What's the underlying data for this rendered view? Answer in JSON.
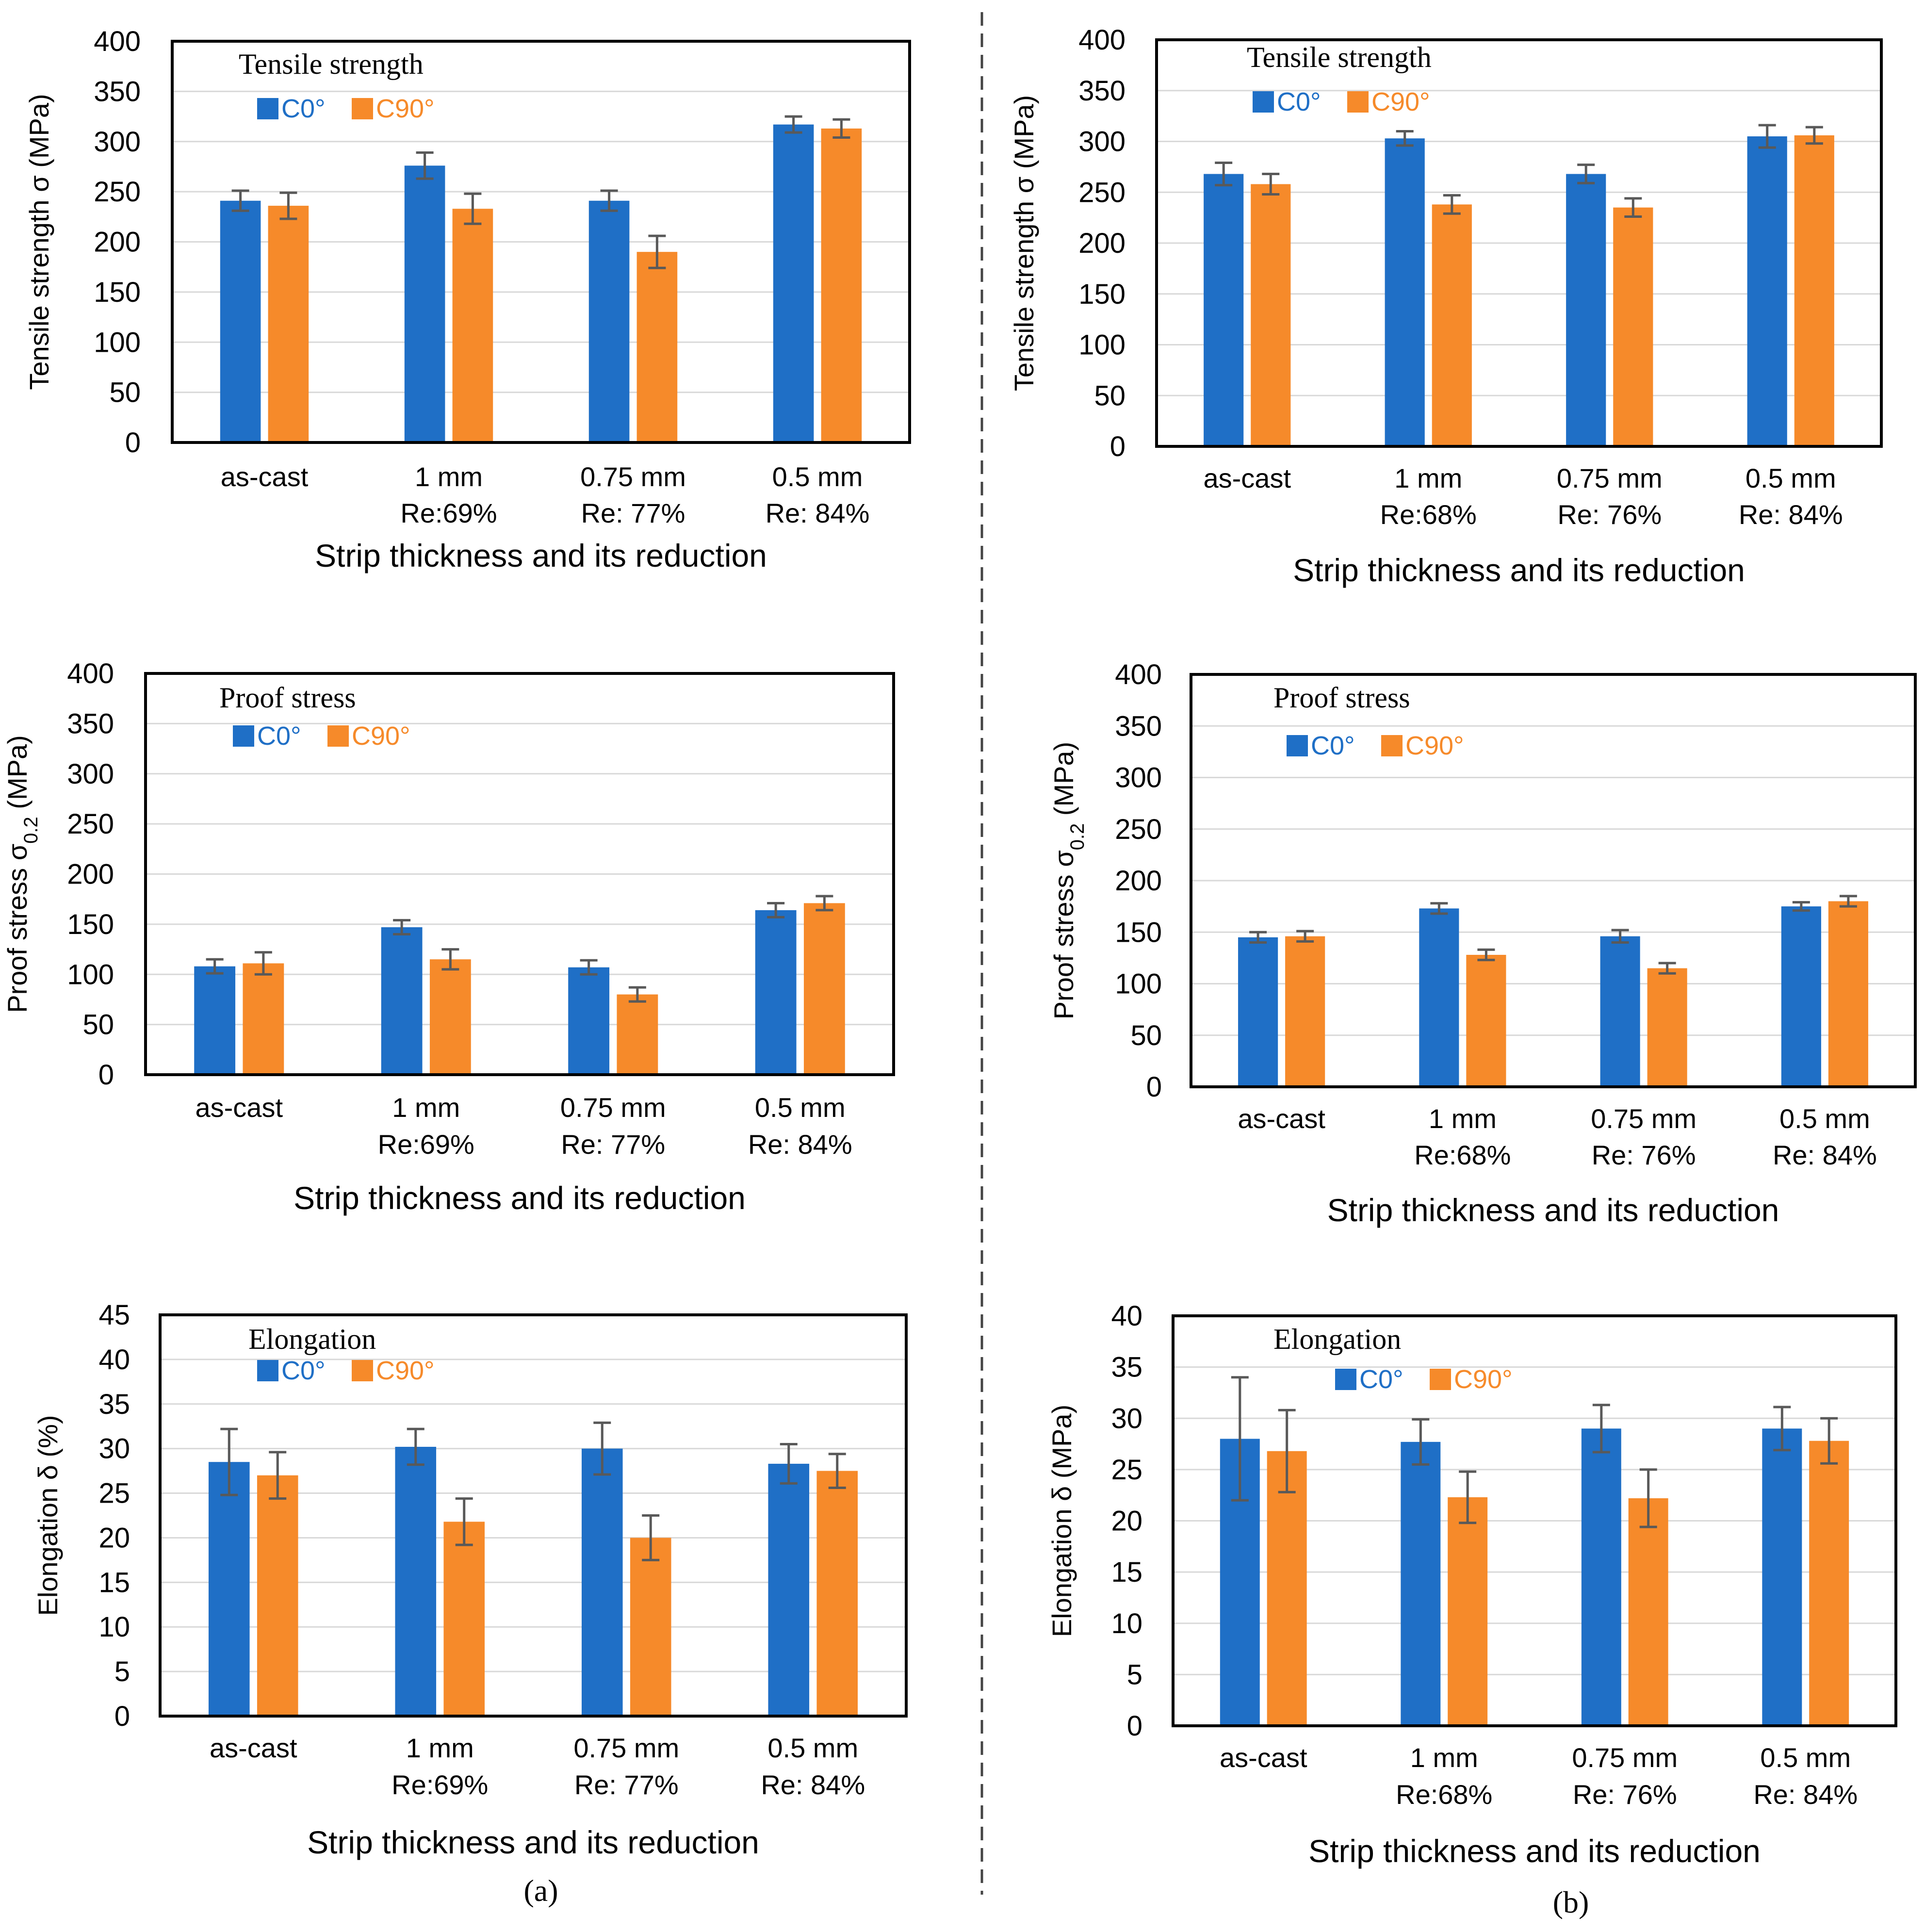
{
  "figure": {
    "caption_a": "(a)",
    "caption_b": "(b)",
    "colors": {
      "c0": "#1f6fc6",
      "c90": "#f68a2a",
      "grid": "#d9d9d9",
      "error": "#595959",
      "axis": "#000000"
    }
  },
  "chart_data": [
    {
      "id": "a-tensile",
      "type": "bar",
      "title": "Tensile strength",
      "ylabel": "Tensile strength σ (MPa)",
      "ylabel_sub": "",
      "ylabel_tail": "",
      "xlabel": "Strip thickness and its reduction",
      "categories": [
        [
          "as-cast"
        ],
        [
          "1 mm",
          "Re:69%"
        ],
        [
          "0.75 mm",
          "Re: 77%"
        ],
        [
          "0.5 mm",
          "Re: 84%"
        ]
      ],
      "ylim": [
        0,
        400
      ],
      "yticks": [
        0,
        50,
        100,
        150,
        200,
        250,
        300,
        350,
        400
      ],
      "grid": true,
      "series": [
        {
          "name": "C0°",
          "values": [
            241,
            276,
            241,
            317
          ],
          "errors": [
            10,
            13,
            10,
            8
          ]
        },
        {
          "name": "C90°",
          "values": [
            236,
            233,
            190,
            313
          ],
          "errors": [
            13,
            15,
            16,
            9
          ]
        }
      ]
    },
    {
      "id": "b-tensile",
      "type": "bar",
      "title": "Tensile strength",
      "ylabel": "Tensile strength σ (MPa)",
      "ylabel_sub": "",
      "ylabel_tail": "",
      "xlabel": "Strip thickness and its reduction",
      "categories": [
        [
          "as-cast"
        ],
        [
          "1 mm",
          "Re:68%"
        ],
        [
          "0.75 mm",
          "Re: 76%"
        ],
        [
          "0.5 mm",
          "Re: 84%"
        ]
      ],
      "ylim": [
        0,
        400
      ],
      "yticks": [
        0,
        50,
        100,
        150,
        200,
        250,
        300,
        350,
        400
      ],
      "grid": true,
      "series": [
        {
          "name": "C0°",
          "values": [
            268,
            303,
            268,
            305
          ],
          "errors": [
            11,
            7,
            9,
            11
          ]
        },
        {
          "name": "C90°",
          "values": [
            258,
            238,
            235,
            306
          ],
          "errors": [
            10,
            9,
            9,
            8
          ]
        }
      ]
    },
    {
      "id": "a-proof",
      "type": "bar",
      "title": "Proof stress",
      "ylabel": "Proof stress σ",
      "ylabel_sub": "0.2",
      "ylabel_tail": " (MPa)",
      "xlabel": "Strip thickness and its reduction",
      "categories": [
        [
          "as-cast"
        ],
        [
          "1 mm",
          "Re:69%"
        ],
        [
          "0.75 mm",
          "Re: 77%"
        ],
        [
          "0.5 mm",
          "Re: 84%"
        ]
      ],
      "ylim": [
        0,
        400
      ],
      "yticks": [
        0,
        50,
        100,
        150,
        200,
        250,
        300,
        350,
        400
      ],
      "grid": true,
      "series": [
        {
          "name": "C0°",
          "values": [
            108,
            147,
            107,
            164
          ],
          "errors": [
            7,
            7,
            7,
            7
          ]
        },
        {
          "name": "C90°",
          "values": [
            111,
            115,
            80,
            171
          ],
          "errors": [
            11,
            10,
            7,
            7
          ]
        }
      ]
    },
    {
      "id": "b-proof",
      "type": "bar",
      "title": "Proof stress",
      "ylabel": "Proof stress σ",
      "ylabel_sub": "0.2",
      "ylabel_tail": " (MPa)",
      "xlabel": "Strip thickness and its reduction",
      "categories": [
        [
          "as-cast"
        ],
        [
          "1 mm",
          "Re:68%"
        ],
        [
          "0.75 mm",
          "Re: 76%"
        ],
        [
          "0.5 mm",
          "Re: 84%"
        ]
      ],
      "ylim": [
        0,
        400
      ],
      "yticks": [
        0,
        50,
        100,
        150,
        200,
        250,
        300,
        350,
        400
      ],
      "grid": true,
      "series": [
        {
          "name": "C0°",
          "values": [
            145,
            173,
            146,
            175
          ],
          "errors": [
            5,
            5,
            6,
            4
          ]
        },
        {
          "name": "C90°",
          "values": [
            146,
            128,
            115,
            180
          ],
          "errors": [
            5,
            5,
            5,
            5
          ]
        }
      ]
    },
    {
      "id": "a-elong",
      "type": "bar",
      "title": "Elongation",
      "ylabel": "Elongation δ (%)",
      "ylabel_sub": "",
      "ylabel_tail": "",
      "xlabel": "Strip thickness and its reduction",
      "categories": [
        [
          "as-cast"
        ],
        [
          "1 mm",
          "Re:69%"
        ],
        [
          "0.75 mm",
          "Re: 77%"
        ],
        [
          "0.5 mm",
          "Re: 84%"
        ]
      ],
      "ylim": [
        0,
        45
      ],
      "yticks": [
        0,
        5,
        10,
        15,
        20,
        25,
        30,
        35,
        40,
        45
      ],
      "grid": true,
      "series": [
        {
          "name": "C0°",
          "values": [
            28.5,
            30.2,
            30.0,
            28.3
          ],
          "errors": [
            3.7,
            2.0,
            2.9,
            2.2
          ]
        },
        {
          "name": "C90°",
          "values": [
            27.0,
            21.8,
            20.0,
            27.5
          ],
          "errors": [
            2.6,
            2.6,
            2.5,
            1.9
          ]
        }
      ]
    },
    {
      "id": "b-elong",
      "type": "bar",
      "title": "Elongation",
      "ylabel": "Elongation δ (MPa)",
      "ylabel_sub": "",
      "ylabel_tail": "",
      "xlabel": "Strip thickness and its reduction",
      "categories": [
        [
          "as-cast"
        ],
        [
          "1 mm",
          "Re:68%"
        ],
        [
          "0.75 mm",
          "Re: 76%"
        ],
        [
          "0.5 mm",
          "Re: 84%"
        ]
      ],
      "ylim": [
        0,
        40
      ],
      "yticks": [
        0,
        5,
        10,
        15,
        20,
        25,
        30,
        35,
        40
      ],
      "grid": true,
      "series": [
        {
          "name": "C0°",
          "values": [
            28.0,
            27.7,
            29.0,
            29.0
          ],
          "errors": [
            6.0,
            2.2,
            2.3,
            2.1
          ]
        },
        {
          "name": "C90°",
          "values": [
            26.8,
            22.3,
            22.2,
            27.8
          ],
          "errors": [
            4.0,
            2.5,
            2.8,
            2.2
          ]
        }
      ]
    }
  ]
}
